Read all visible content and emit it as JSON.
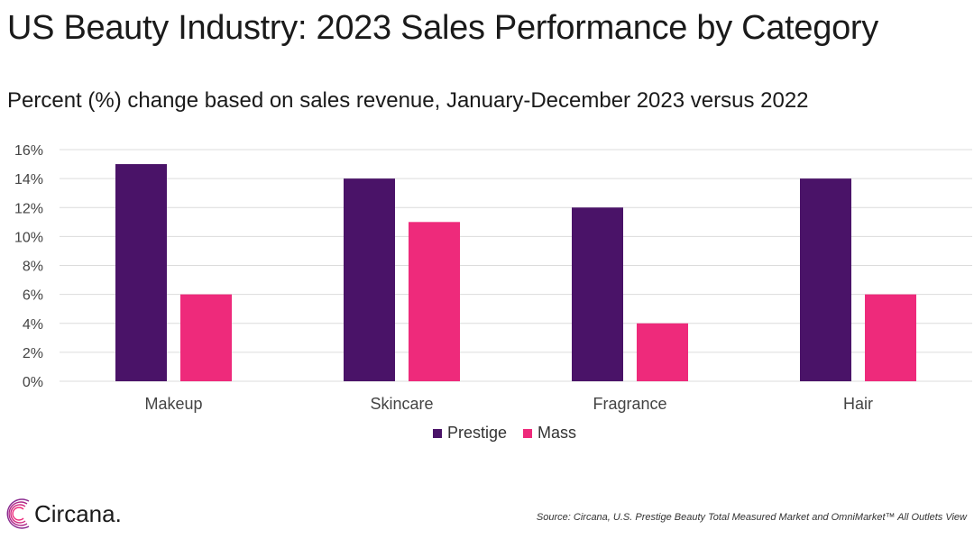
{
  "title": "US Beauty Industry: 2023 Sales Performance by Category",
  "subtitle": "Percent (%) change based on sales revenue, January-December 2023 versus 2022",
  "colors": {
    "prestige": "#4a1368",
    "mass": "#ee2a7b"
  },
  "logo": {
    "text": "Circana."
  },
  "source": "Source: Circana, U.S. Prestige Beauty Total Measured Market and OmniMarket™ All Outlets View",
  "chart_data": {
    "type": "bar",
    "categories": [
      "Makeup",
      "Skincare",
      "Fragrance",
      "Hair"
    ],
    "series": [
      {
        "name": "Prestige",
        "values": [
          15,
          14,
          12,
          14
        ]
      },
      {
        "name": "Mass",
        "values": [
          6,
          11,
          4,
          6
        ]
      }
    ],
    "ylim": [
      0,
      16
    ],
    "yticks": [
      0,
      2,
      4,
      6,
      8,
      10,
      12,
      14,
      16
    ],
    "ytick_labels": [
      "0%",
      "2%",
      "4%",
      "6%",
      "8%",
      "10%",
      "12%",
      "14%",
      "16%"
    ],
    "grid": true,
    "legend_position": "bottom-center"
  }
}
